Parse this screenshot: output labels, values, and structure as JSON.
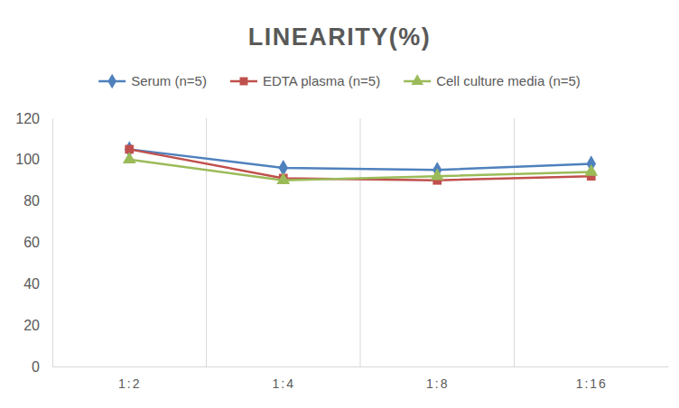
{
  "chart_data": {
    "type": "line",
    "title": "LINEARITY(%)",
    "categories": [
      "1:2",
      "1:4",
      "1:8",
      "1:16"
    ],
    "series": [
      {
        "name": "Serum (n=5)",
        "color": "#4f81bd",
        "marker": "diamond",
        "values": [
          105,
          96,
          95,
          98
        ]
      },
      {
        "name": "EDTA plasma (n=5)",
        "color": "#c0504d",
        "marker": "square",
        "values": [
          105,
          91,
          90,
          92
        ]
      },
      {
        "name": "Cell culture media (n=5)",
        "color": "#9bbb59",
        "marker": "triangle",
        "values": [
          100,
          90,
          92,
          94
        ]
      }
    ],
    "ylim": [
      0,
      120
    ],
    "yticks": [
      0,
      20,
      40,
      60,
      80,
      100,
      120
    ],
    "grid": true,
    "legend": "top"
  }
}
